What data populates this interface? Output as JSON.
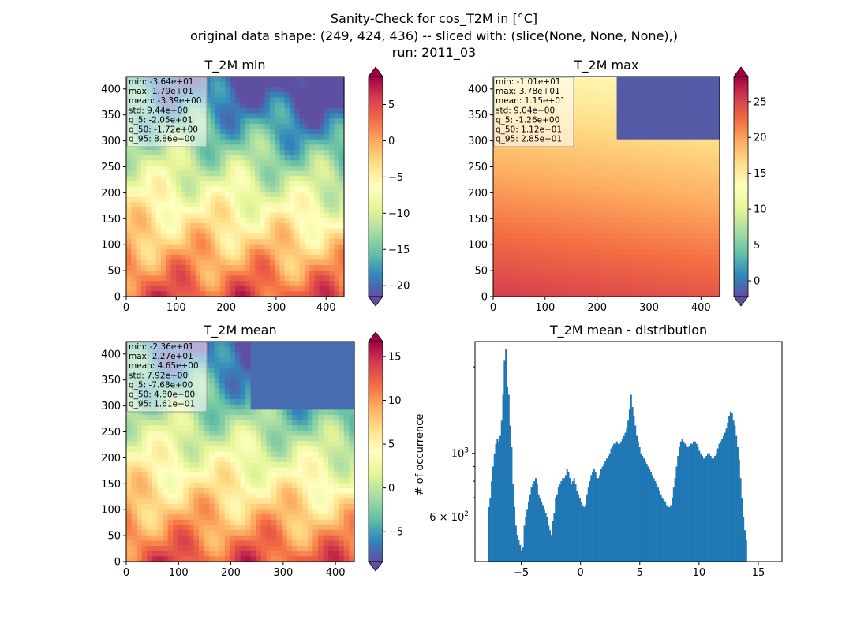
{
  "figure": {
    "title_lines": [
      "Sanity-Check for cos_T2M in [°C]",
      "original data shape: (249, 424, 436) -- sliced with: (slice(None, None, None),)",
      "run: 2011_03"
    ]
  },
  "colors": {
    "histogram_bar": "#1f77b4",
    "colormap": "Spectral_r"
  },
  "chart_data": [
    {
      "type": "heatmap",
      "title": "T_2M min",
      "xlim": [
        0,
        436
      ],
      "ylim": [
        0,
        424
      ],
      "x_ticks": [
        0,
        100,
        200,
        300,
        400
      ],
      "y_ticks": [
        0,
        50,
        100,
        150,
        200,
        250,
        300,
        350,
        400
      ],
      "colorbar": {
        "min": -21.5,
        "max": 8.86,
        "ticks": [
          5,
          0,
          -5,
          -10,
          -15,
          -20
        ],
        "extend": "both"
      },
      "stats": [
        "min: -3.64e+01",
        "max: 1.79e+01",
        "mean: -3.39e+00",
        "std: 9.44e+00",
        "q_5: -2.05e+01",
        "q_50: -1.72e+00",
        "q_95: 8.86e+00"
      ],
      "field_mean": -3.39
    },
    {
      "type": "heatmap",
      "title": "T_2M max",
      "xlim": [
        0,
        436
      ],
      "ylim": [
        0,
        424
      ],
      "x_ticks": [
        0,
        100,
        200,
        300,
        400
      ],
      "y_ticks": [
        0,
        50,
        100,
        150,
        200,
        250,
        300,
        350,
        400
      ],
      "colorbar": {
        "min": -2.2,
        "max": 28.5,
        "ticks": [
          25,
          20,
          15,
          10,
          5,
          0
        ],
        "extend": "both"
      },
      "stats": [
        "min: -1.01e+01",
        "max: 3.78e+01",
        "mean: 1.15e+01",
        "std: 9.04e+00",
        "q_5: -1.26e+00",
        "q_50: 1.12e+01",
        "q_95: 2.85e+01"
      ],
      "field_mean": 11.5
    },
    {
      "type": "heatmap",
      "title": "T_2M mean",
      "xlim": [
        0,
        436
      ],
      "ylim": [
        0,
        424
      ],
      "x_ticks": [
        0,
        100,
        200,
        300,
        400
      ],
      "y_ticks": [
        0,
        50,
        100,
        150,
        200,
        250,
        300,
        350,
        400
      ],
      "colorbar": {
        "min": -8.4,
        "max": 16.7,
        "ticks": [
          15,
          10,
          5,
          0,
          -5
        ],
        "extend": "both"
      },
      "stats": [
        "min: -2.36e+01",
        "max: 2.27e+01",
        "mean: 4.65e+00",
        "std: 7.92e+00",
        "q_5: -7.68e+00",
        "q_50: 4.80e+00",
        "q_95: 1.61e+01"
      ],
      "field_mean": 4.65
    },
    {
      "type": "bar",
      "title": "T_2M mean - distribution",
      "ylabel": "# of occurrence",
      "xlabel": "",
      "y_scale": "log",
      "xlim": [
        -8.9,
        17.0
      ],
      "ylim": [
        420,
        2450
      ],
      "x_ticks": [
        -5,
        0,
        5,
        10,
        15
      ],
      "x_tick_labels": [
        "−5",
        "0",
        "5",
        "10",
        "15"
      ],
      "y_ticks_major": [
        {
          "value": 1000,
          "base": "10",
          "exp": "3"
        },
        {
          "value": 600,
          "base": "6 × 10",
          "exp": "2"
        }
      ],
      "y_ticks_minor": [
        500,
        700,
        800,
        900,
        2000
      ],
      "bin_start": -7.8,
      "bin_width": 0.12,
      "values": [
        650,
        700,
        800,
        900,
        1000,
        1080,
        1120,
        1100,
        1150,
        1300,
        1600,
        2100,
        2300,
        1700,
        1600,
        1250,
        1050,
        780,
        650,
        560,
        520,
        500,
        480,
        460,
        470,
        560,
        600,
        640,
        680,
        720,
        760,
        780,
        800,
        820,
        780,
        720,
        700,
        680,
        660,
        640,
        620,
        600,
        560,
        540,
        520,
        580,
        620,
        700,
        720,
        760,
        780,
        800,
        820,
        820,
        840,
        880,
        860,
        820,
        780,
        800,
        820,
        780,
        740,
        720,
        700,
        680,
        660,
        650,
        660,
        720,
        760,
        800,
        840,
        860,
        880,
        860,
        820,
        820,
        840,
        880,
        900,
        920,
        940,
        960,
        980,
        1000,
        1040,
        1060,
        1080,
        1080,
        1100,
        1080,
        1080,
        1100,
        1120,
        1150,
        1180,
        1220,
        1300,
        1420,
        1600,
        1450,
        1350,
        1250,
        1150,
        1100,
        1050,
        1000,
        980,
        960,
        940,
        920,
        900,
        880,
        860,
        840,
        820,
        800,
        780,
        760,
        740,
        720,
        700,
        690,
        680,
        660,
        650,
        650,
        660,
        700,
        760,
        820,
        900,
        980,
        1050,
        1100,
        1120,
        1100,
        1080,
        1060,
        1050,
        1060,
        1080,
        1080,
        1100,
        1100,
        1080,
        1050,
        1020,
        1000,
        980,
        960,
        960,
        980,
        1000,
        1000,
        980,
        960,
        960,
        980,
        1000,
        1040,
        1080,
        1100,
        1120,
        1150,
        1180,
        1220,
        1280,
        1350,
        1400,
        1380,
        1300,
        1250,
        1150,
        1050,
        950,
        820,
        700,
        600,
        540,
        500
      ]
    }
  ]
}
